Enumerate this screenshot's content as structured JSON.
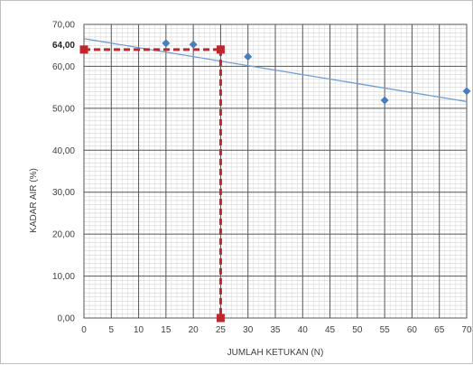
{
  "chart_data": {
    "type": "scatter",
    "title": "",
    "xlabel": "JUMLAH KETUKAN (N)",
    "ylabel": "KADAR AIR (%)",
    "xlim": [
      0,
      70
    ],
    "ylim": [
      0,
      70
    ],
    "x_ticks": [
      "0",
      "5",
      "10",
      "15",
      "20",
      "25",
      "30",
      "35",
      "40",
      "45",
      "50",
      "55",
      "60",
      "65",
      "70"
    ],
    "y_ticks": [
      "0,00",
      "10,00",
      "20,00",
      "30,00",
      "40,00",
      "50,00",
      "60,00",
      "70,00"
    ],
    "grid": "major and minor",
    "legend": "none",
    "series": [
      {
        "points": [
          {
            "x": 15,
            "y": 65.5
          },
          {
            "x": 20,
            "y": 65.2
          },
          {
            "x": 30,
            "y": 62.3
          },
          {
            "x": 55,
            "y": 51.9
          },
          {
            "x": 70,
            "y": 54.1
          }
        ],
        "color": "#4a7ebb",
        "marker": "diamond"
      }
    ],
    "trendline": {
      "x": [
        0,
        70
      ],
      "y": [
        66.6,
        51.6
      ],
      "color": "#6f9bd1"
    },
    "annotation": {
      "label": "64,00",
      "x": 25,
      "y": 64,
      "color": "#c0262d",
      "style": "dashed"
    }
  }
}
